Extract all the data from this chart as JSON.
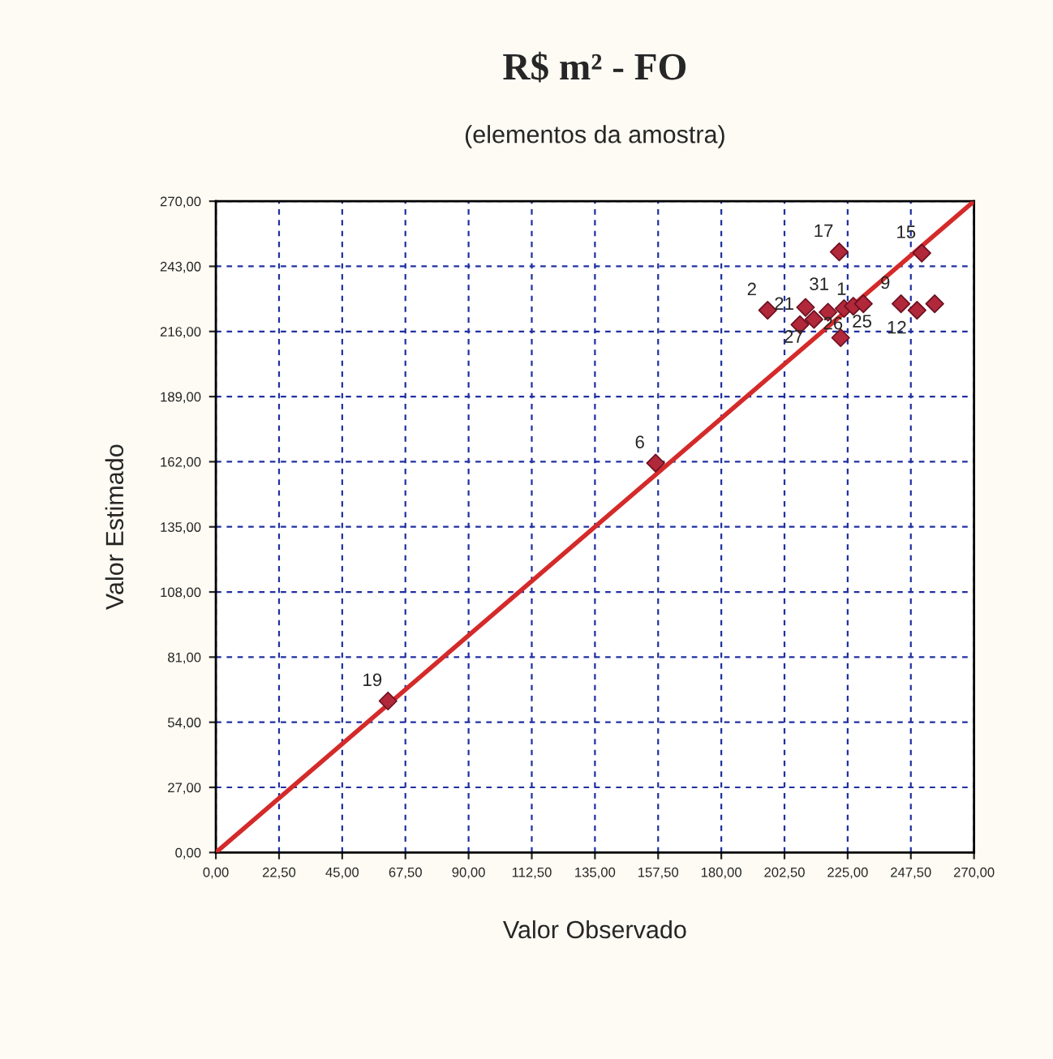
{
  "chart_data": {
    "type": "scatter",
    "title": "R$ m² - FO",
    "subtitle": "(elementos da amostra)",
    "xlabel": "Valor Observado",
    "ylabel": "Valor Estimado",
    "xlim": [
      0,
      270
    ],
    "ylim": [
      0,
      270
    ],
    "xticks": [
      {
        "value": 0,
        "label": "0,00"
      },
      {
        "value": 22.5,
        "label": "22,50"
      },
      {
        "value": 45,
        "label": "45,00"
      },
      {
        "value": 67.5,
        "label": "67,50"
      },
      {
        "value": 90,
        "label": "90,00"
      },
      {
        "value": 112.5,
        "label": "112,50"
      },
      {
        "value": 135,
        "label": "135,00"
      },
      {
        "value": 157.5,
        "label": "157,50"
      },
      {
        "value": 180,
        "label": "180,00"
      },
      {
        "value": 202.5,
        "label": "202,50"
      },
      {
        "value": 225,
        "label": "225,00"
      },
      {
        "value": 247.5,
        "label": "247,50"
      },
      {
        "value": 270,
        "label": "270,00"
      }
    ],
    "yticks": [
      {
        "value": 0,
        "label": "0,00"
      },
      {
        "value": 27,
        "label": "27,00"
      },
      {
        "value": 54,
        "label": "54,00"
      },
      {
        "value": 81,
        "label": "81,00"
      },
      {
        "value": 108,
        "label": "108,00"
      },
      {
        "value": 135,
        "label": "135,00"
      },
      {
        "value": 162,
        "label": "162,00"
      },
      {
        "value": 189,
        "label": "189,00"
      },
      {
        "value": 216,
        "label": "216,00"
      },
      {
        "value": 243,
        "label": "243,00"
      },
      {
        "value": 270,
        "label": "270,00"
      }
    ],
    "grid": true,
    "series": [
      {
        "type": "line",
        "marker": "none",
        "color": "#d42a2a",
        "x": [
          0,
          270
        ],
        "values": [
          0,
          270
        ]
      },
      {
        "marker": "diamond",
        "color": "#b0283a",
        "x": [
          61.3,
          156.6,
          222,
          251.4,
          196.5,
          208,
          213,
          210,
          218,
          223.7,
          227,
          230.6,
          222.5,
          244,
          249.7,
          256
        ],
        "values": [
          62.8,
          161.4,
          249,
          248.5,
          224.8,
          218.8,
          221,
          226,
          224,
          225.5,
          226.5,
          227.5,
          213.4,
          227.5,
          224.8,
          227.5
        ]
      }
    ],
    "annotations": [
      {
        "text": "19",
        "x": 61.3,
        "y": 62.8
      },
      {
        "text": "6",
        "x": 156.6,
        "y": 161.4
      },
      {
        "text": "17",
        "x": 222,
        "y": 249
      },
      {
        "text": "15",
        "x": 251.4,
        "y": 248.5
      },
      {
        "text": "2",
        "x": 196.5,
        "y": 224.8
      },
      {
        "text": "21",
        "x": 208,
        "y": 218.8
      },
      {
        "text": "27",
        "x": 213,
        "y": 221
      },
      {
        "text": "31",
        "x": 210,
        "y": 226
      },
      {
        "text": "1",
        "x": 218,
        "y": 224
      },
      {
        "text": "26",
        "x": 227,
        "y": 226.5
      },
      {
        "text": "25",
        "x": 223.7,
        "y": 225.5
      },
      {
        "text": "9",
        "x": 244,
        "y": 227.5
      },
      {
        "text": "12",
        "x": 249.7,
        "y": 224.8
      }
    ]
  }
}
